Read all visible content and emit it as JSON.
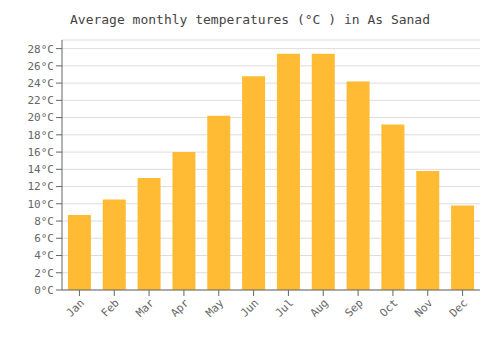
{
  "chart_data": {
    "type": "bar",
    "title": "Average monthly temperatures (°C ) in As Sanad",
    "categories": [
      "Jan",
      "Feb",
      "Mar",
      "Apr",
      "May",
      "Jun",
      "Jul",
      "Aug",
      "Sep",
      "Oct",
      "Nov",
      "Dec"
    ],
    "values": [
      8.7,
      10.5,
      13.0,
      16.0,
      20.2,
      24.8,
      27.4,
      27.4,
      24.2,
      19.2,
      13.8,
      9.8
    ],
    "color": "#FFBB33",
    "ylim": [
      0,
      29
    ],
    "yticks": [
      {
        "value": 0,
        "label": "0°C"
      },
      {
        "value": 2,
        "label": "2°C"
      },
      {
        "value": 4,
        "label": "4°C"
      },
      {
        "value": 6,
        "label": "6°C"
      },
      {
        "value": 8,
        "label": "8°C"
      },
      {
        "value": 10,
        "label": "10°C"
      },
      {
        "value": 12,
        "label": "12°C"
      },
      {
        "value": 14,
        "label": "14°C"
      },
      {
        "value": 16,
        "label": "16°C"
      },
      {
        "value": 18,
        "label": "18°C"
      },
      {
        "value": 20,
        "label": "20°C"
      },
      {
        "value": 22,
        "label": "22°C"
      },
      {
        "value": 24,
        "label": "24°C"
      },
      {
        "value": 26,
        "label": "26°C"
      },
      {
        "value": 28,
        "label": "28°C"
      }
    ],
    "grid": true
  }
}
